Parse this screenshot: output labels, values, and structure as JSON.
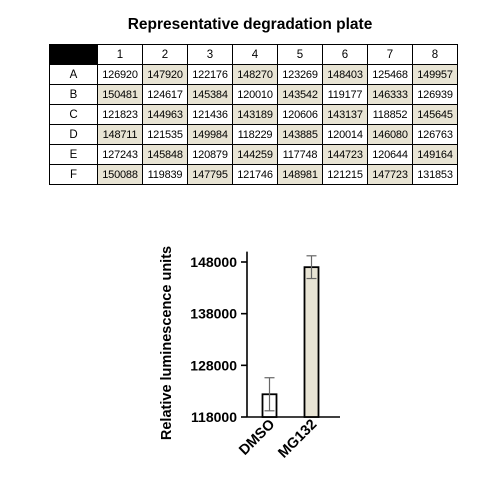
{
  "title": "Representative degradation plate",
  "plate": {
    "columns": [
      "1",
      "2",
      "3",
      "4",
      "5",
      "6",
      "7",
      "8"
    ],
    "rows": [
      {
        "label": "A",
        "values": [
          "126920",
          "147920",
          "122176",
          "148270",
          "123269",
          "148403",
          "125468",
          "149957"
        ]
      },
      {
        "label": "B",
        "values": [
          "150481",
          "124617",
          "145384",
          "120010",
          "143542",
          "119177",
          "146333",
          "126939"
        ]
      },
      {
        "label": "C",
        "values": [
          "121823",
          "144963",
          "121436",
          "143189",
          "120606",
          "143137",
          "118852",
          "145645"
        ]
      },
      {
        "label": "D",
        "values": [
          "148711",
          "121535",
          "149984",
          "118229",
          "143885",
          "120014",
          "146080",
          "126763"
        ]
      },
      {
        "label": "E",
        "values": [
          "127243",
          "145848",
          "120879",
          "144259",
          "117748",
          "144723",
          "120644",
          "149164"
        ]
      },
      {
        "label": "F",
        "values": [
          "150088",
          "119839",
          "147795",
          "121746",
          "148981",
          "121215",
          "147723",
          "131853"
        ]
      }
    ],
    "shaded": [
      [
        false,
        true,
        false,
        true,
        false,
        true,
        false,
        true
      ],
      [
        true,
        false,
        true,
        false,
        true,
        false,
        true,
        false
      ],
      [
        false,
        true,
        false,
        true,
        false,
        true,
        false,
        true
      ],
      [
        true,
        false,
        true,
        false,
        true,
        false,
        true,
        false
      ],
      [
        false,
        true,
        false,
        true,
        false,
        true,
        false,
        true
      ],
      [
        true,
        false,
        true,
        false,
        true,
        false,
        true,
        false
      ]
    ],
    "shade_color": "#e8e4d4"
  },
  "chart_data": {
    "type": "bar",
    "categories": [
      "DMSO",
      "MG132"
    ],
    "values": [
      122400,
      147000
    ],
    "errors": [
      3200,
      2200
    ],
    "fills": [
      "#ffffff",
      "#e8e4d4"
    ],
    "ylabel": "Relative luminescence units",
    "ylim": [
      118000,
      150000
    ],
    "yticks": [
      118000,
      128000,
      138000,
      148000
    ],
    "ytick_labels": [
      "118000",
      "128000",
      "138000",
      "148000"
    ],
    "grid": false
  }
}
